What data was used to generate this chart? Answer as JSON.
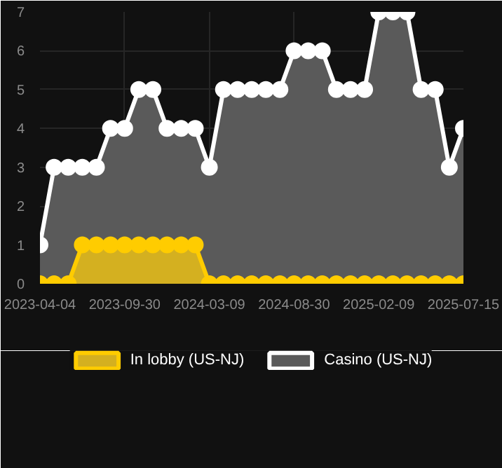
{
  "chart_data": {
    "type": "area",
    "categories": [
      "2023-04-04",
      null,
      null,
      null,
      null,
      null,
      "2023-09-30",
      null,
      null,
      null,
      null,
      null,
      "2024-03-09",
      null,
      null,
      null,
      null,
      null,
      "2024-08-30",
      null,
      null,
      null,
      null,
      null,
      "2025-02-09",
      null,
      null,
      null,
      null,
      null,
      "2025-07-15"
    ],
    "series": [
      {
        "name": "In lobby (US-NJ)",
        "color": "#ffcc00",
        "values": [
          0,
          0,
          0,
          1,
          1,
          1,
          1,
          1,
          1,
          1,
          1,
          1,
          0,
          0,
          0,
          0,
          0,
          0,
          0,
          0,
          0,
          0,
          0,
          0,
          0,
          0,
          0,
          0,
          0,
          0,
          0
        ]
      },
      {
        "name": "Casino (US-NJ)",
        "color": "#ffffff",
        "values": [
          1,
          3,
          3,
          3,
          3,
          4,
          4,
          5,
          5,
          4,
          4,
          4,
          3,
          5,
          5,
          5,
          5,
          5,
          6,
          6,
          6,
          5,
          5,
          5,
          7,
          7,
          7,
          5,
          5,
          3,
          4
        ]
      }
    ],
    "ylim": [
      0,
      7
    ],
    "yticks": [
      0,
      1,
      2,
      3,
      4,
      5,
      6,
      7
    ],
    "grid": true,
    "legend": "bottom",
    "marker": "circle",
    "line_style": "solid"
  }
}
